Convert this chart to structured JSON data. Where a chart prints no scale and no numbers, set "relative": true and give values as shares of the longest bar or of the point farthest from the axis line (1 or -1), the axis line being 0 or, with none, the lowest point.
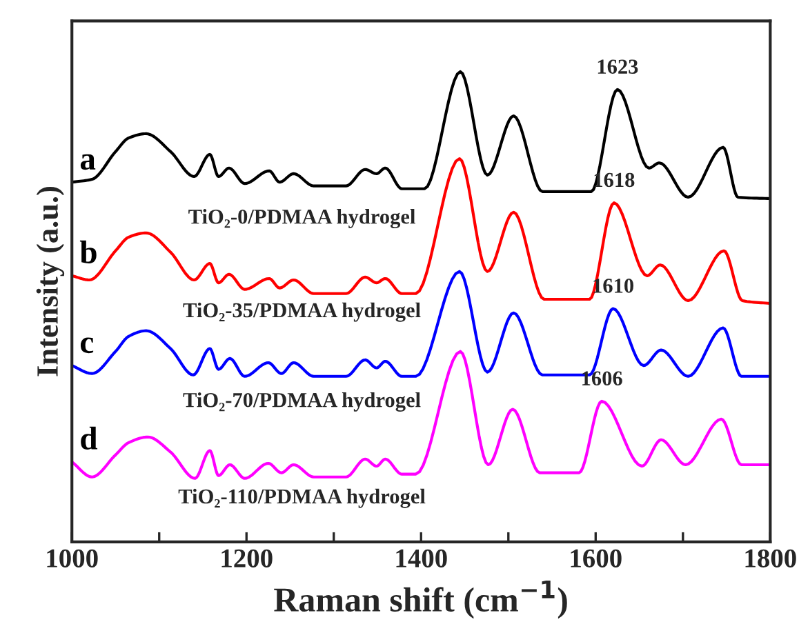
{
  "chart_data": {
    "type": "line",
    "relative": true,
    "xlabel": "Raman shift (cm$^{−1}$)",
    "ylabel": "Intensity (a.u.)",
    "xlim": [
      1000,
      1800
    ],
    "xticks": [
      1000,
      {
        "value": 1100,
        "label": null
      },
      1200,
      {
        "value": 1300,
        "label": null
      },
      1400,
      {
        "value": 1500,
        "label": null
      },
      1600,
      {
        "value": 1700,
        "label": null
      },
      1800
    ],
    "grid": false,
    "legend": false,
    "marker": "none",
    "line_style": "solid",
    "series": [
      {
        "name": "a",
        "color": "#000000",
        "x": [
          1000,
          1023,
          1050,
          1065,
          1085,
          1113,
          1140,
          1158,
          1168,
          1180,
          1198,
          1226,
          1238,
          1254,
          1277,
          1314,
          1336,
          1349,
          1359,
          1378,
          1404,
          1445,
          1476,
          1506,
          1539,
          1595,
          1625,
          1661,
          1673,
          1706,
          1746,
          1763,
          1800
        ],
        "values": [
          0.765,
          0.771,
          0.83,
          0.859,
          0.868,
          0.83,
          0.777,
          0.824,
          0.777,
          0.795,
          0.762,
          0.789,
          0.765,
          0.783,
          0.757,
          0.757,
          0.792,
          0.783,
          0.795,
          0.751,
          0.751,
          1.0,
          0.78,
          0.906,
          0.745,
          0.745,
          0.962,
          0.795,
          0.806,
          0.733,
          0.839,
          0.733,
          0.73
        ]
      },
      {
        "name": "b",
        "color": "#ff0000",
        "x": [
          1000,
          1020,
          1050,
          1065,
          1085,
          1113,
          1140,
          1158,
          1168,
          1180,
          1198,
          1226,
          1238,
          1254,
          1277,
          1314,
          1336,
          1349,
          1359,
          1378,
          1394,
          1444,
          1476,
          1506,
          1541,
          1593,
          1621,
          1659,
          1674,
          1706,
          1747,
          1768,
          1800
        ],
        "values": [
          0.566,
          0.557,
          0.619,
          0.648,
          0.657,
          0.616,
          0.557,
          0.592,
          0.551,
          0.569,
          0.537,
          0.56,
          0.54,
          0.557,
          0.528,
          0.528,
          0.563,
          0.551,
          0.56,
          0.528,
          0.528,
          0.815,
          0.575,
          0.701,
          0.516,
          0.516,
          0.721,
          0.566,
          0.589,
          0.513,
          0.619,
          0.513,
          0.507
        ]
      },
      {
        "name": "c",
        "color": "#0000ff",
        "x": [
          1000,
          1023,
          1050,
          1065,
          1085,
          1113,
          1139,
          1158,
          1168,
          1181,
          1198,
          1225,
          1240,
          1254,
          1277,
          1314,
          1336,
          1349,
          1359,
          1378,
          1394,
          1444,
          1476,
          1506,
          1539,
          1593,
          1620,
          1655,
          1675,
          1706,
          1746,
          1767,
          1800
        ],
        "values": [
          0.375,
          0.358,
          0.405,
          0.437,
          0.449,
          0.411,
          0.355,
          0.411,
          0.367,
          0.39,
          0.352,
          0.381,
          0.358,
          0.381,
          0.352,
          0.352,
          0.387,
          0.37,
          0.384,
          0.352,
          0.352,
          0.575,
          0.361,
          0.487,
          0.355,
          0.355,
          0.496,
          0.375,
          0.408,
          0.352,
          0.455,
          0.352,
          0.352
        ]
      },
      {
        "name": "d",
        "color": "#ff00ff",
        "x": [
          1000,
          1023,
          1050,
          1065,
          1087,
          1113,
          1141,
          1158,
          1168,
          1181,
          1198,
          1225,
          1240,
          1254,
          1277,
          1314,
          1336,
          1349,
          1359,
          1378,
          1394,
          1445,
          1477,
          1505,
          1536,
          1581,
          1607,
          1653,
          1675,
          1703,
          1744,
          1767,
          1800
        ],
        "values": [
          0.17,
          0.138,
          0.185,
          0.211,
          0.223,
          0.191,
          0.135,
          0.194,
          0.141,
          0.164,
          0.135,
          0.167,
          0.147,
          0.164,
          0.138,
          0.138,
          0.176,
          0.161,
          0.176,
          0.144,
          0.144,
          0.405,
          0.164,
          0.282,
          0.147,
          0.147,
          0.299,
          0.161,
          0.217,
          0.164,
          0.261,
          0.164,
          0.164
        ]
      }
    ],
    "annotations": [
      "TiO₂-0/PDMAA hydrogel",
      "TiO₂-35/PDMAA hydrogel",
      "TiO₂-70/PDMAA hydrogel",
      "TiO₂-110/PDMAA hydrogel",
      {
        "text": "1623",
        "x": 1625,
        "y": 0.962
      },
      {
        "text": "1618",
        "x": 1621,
        "y": 0.721
      },
      {
        "text": "1610",
        "x": 1620,
        "y": 0.496
      },
      {
        "text": "1606",
        "x": 1607,
        "y": 0.299
      }
    ]
  }
}
